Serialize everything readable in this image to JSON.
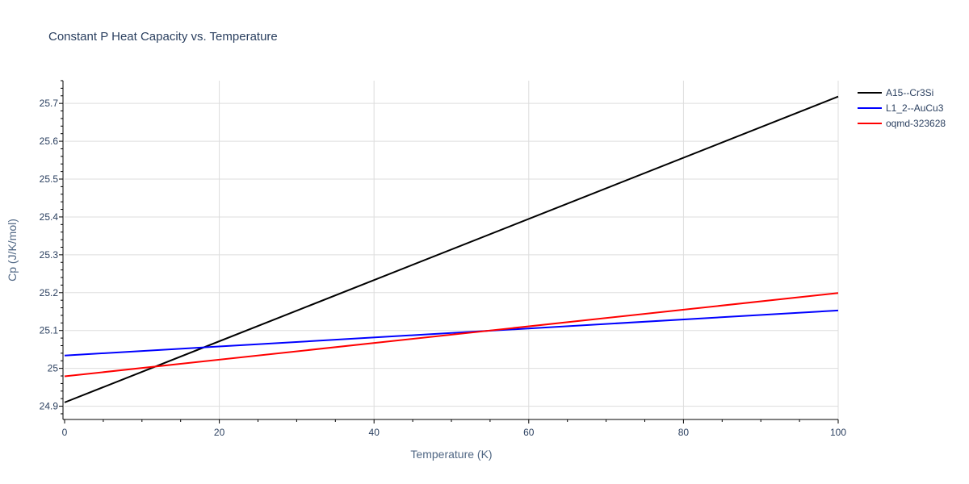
{
  "chart_data": {
    "type": "line",
    "title": "Constant P Heat Capacity vs. Temperature",
    "xlabel": "Temperature (K)",
    "ylabel": "Cp (J/K/mol)",
    "xlim": [
      0,
      100
    ],
    "ylim": [
      24.865,
      25.76
    ],
    "xticks": [
      0,
      20,
      40,
      60,
      80,
      100
    ],
    "yticks": [
      24.9,
      25,
      25.1,
      25.2,
      25.3,
      25.4,
      25.5,
      25.6,
      25.7
    ],
    "ytick_labels": [
      "24.9",
      "25",
      "25.1",
      "25.2",
      "25.3",
      "25.4",
      "25.5",
      "25.6",
      "25.7"
    ],
    "grid": true,
    "legend_position": "top-right",
    "series": [
      {
        "name": "A15--Cr3Si",
        "color": "#000000",
        "x": [
          0,
          100
        ],
        "y": [
          24.91,
          25.718
        ]
      },
      {
        "name": "L1_2--AuCu3",
        "color": "#0000ff",
        "x": [
          0,
          100
        ],
        "y": [
          25.034,
          25.153
        ]
      },
      {
        "name": "oqmd-323628",
        "color": "#ff0000",
        "x": [
          0,
          100
        ],
        "y": [
          24.979,
          25.199
        ]
      }
    ]
  }
}
